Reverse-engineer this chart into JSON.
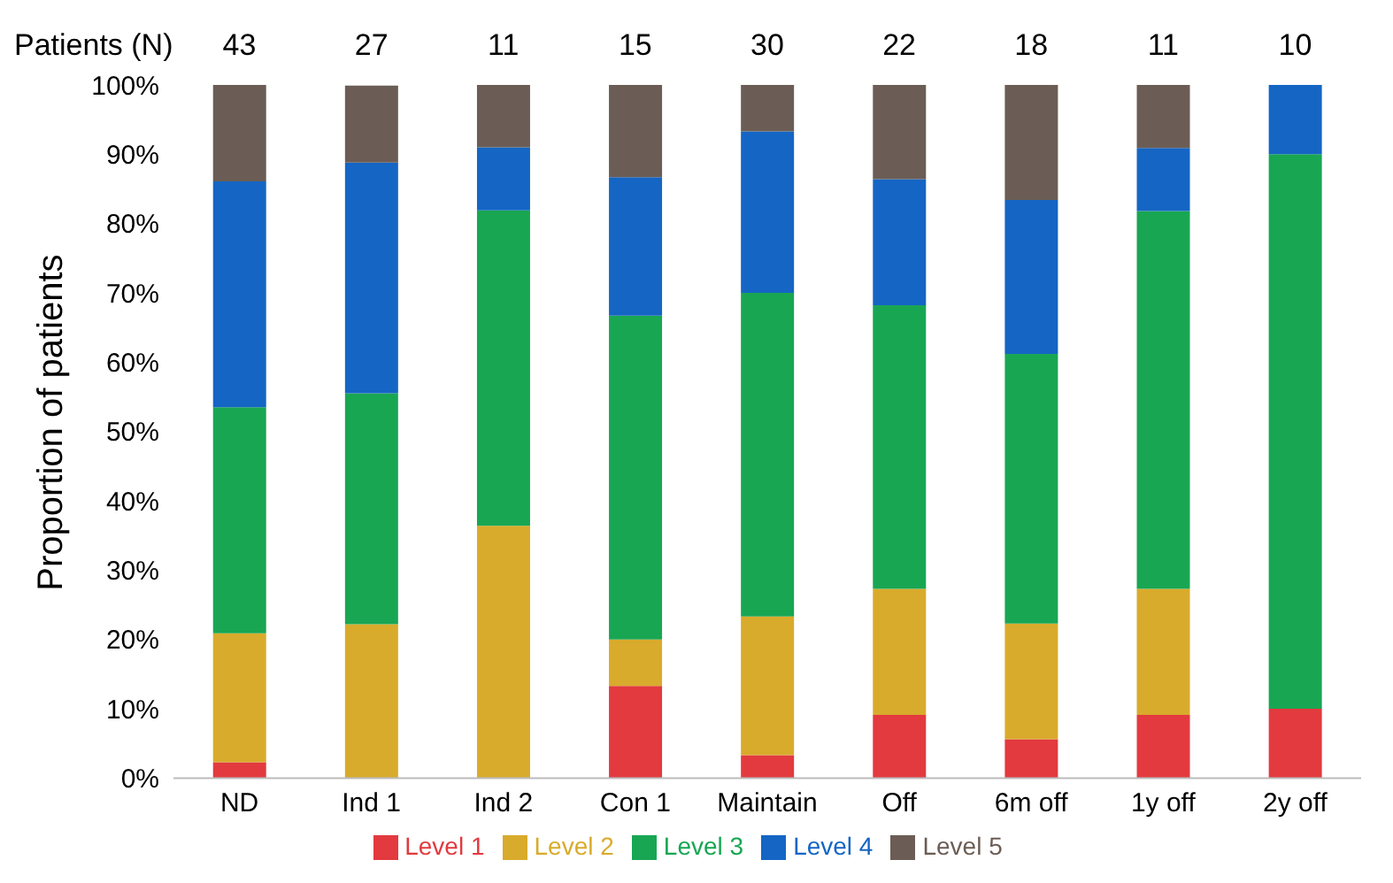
{
  "chart_data": {
    "type": "bar",
    "stacked": true,
    "ylabel": "Proportion of patients",
    "categories": [
      "ND",
      "Ind 1",
      "Ind 2",
      "Con 1",
      "Maintain",
      "Off",
      "6m off",
      "1y off",
      "2y off"
    ],
    "series": [
      {
        "name": "Level 1",
        "color": "#e23a3f",
        "values": [
          2.3,
          0,
          0,
          13.3,
          3.3,
          9.1,
          5.6,
          9.1,
          10
        ]
      },
      {
        "name": "Level 2",
        "color": "#d9ab2c",
        "values": [
          18.6,
          22.2,
          36.4,
          6.7,
          20,
          18.2,
          16.7,
          18.2,
          0
        ]
      },
      {
        "name": "Level 3",
        "color": "#19a653",
        "values": [
          32.6,
          33.3,
          45.5,
          46.7,
          46.7,
          40.9,
          38.9,
          54.5,
          80
        ]
      },
      {
        "name": "Level 4",
        "color": "#1565c4",
        "values": [
          32.6,
          33.3,
          9.1,
          20,
          23.3,
          18.2,
          22.2,
          9.1,
          10
        ]
      },
      {
        "name": "Level 5",
        "color": "#6b5d55",
        "values": [
          13.9,
          11.1,
          9.0,
          13.3,
          6.7,
          13.6,
          16.6,
          9.1,
          0
        ]
      }
    ],
    "ylim": [
      0,
      100
    ],
    "yticks": [
      {
        "value": 0,
        "label": "0%"
      },
      {
        "value": 10,
        "label": "10%"
      },
      {
        "value": 20,
        "label": "20%"
      },
      {
        "value": 30,
        "label": "30%"
      },
      {
        "value": 40,
        "label": "40%"
      },
      {
        "value": 50,
        "label": "50%"
      },
      {
        "value": 60,
        "label": "60%"
      },
      {
        "value": 70,
        "label": "70%"
      },
      {
        "value": 80,
        "label": "80%"
      },
      {
        "value": 90,
        "label": "90%"
      },
      {
        "value": 100,
        "label": "100%"
      }
    ],
    "legend": "bottom",
    "annotations": [
      "Patients (N)",
      "43",
      "27",
      "11",
      "15",
      "30",
      "22",
      "18",
      "11",
      "10"
    ]
  }
}
